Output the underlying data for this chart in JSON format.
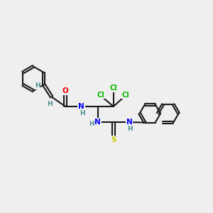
{
  "background_color": "#efefef",
  "bond_color": "#1a1a1a",
  "bond_width": 1.5,
  "atom_colors": {
    "O": "#ff0000",
    "N": "#0000ff",
    "S": "#cccc00",
    "Cl": "#00bb00",
    "H": "#4a8a8a",
    "C": "#1a1a1a"
  },
  "font_size_atom": 7.5,
  "font_size_h": 6.5,
  "font_size_cl": 7.0
}
